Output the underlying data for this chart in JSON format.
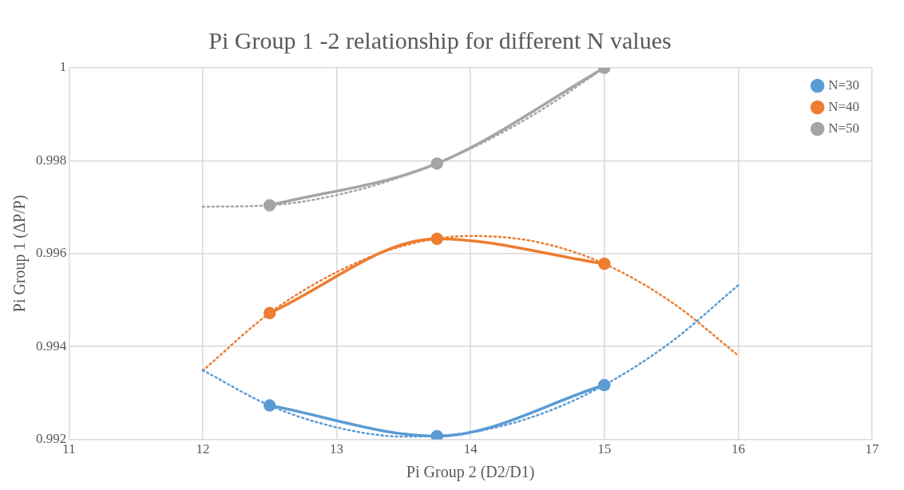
{
  "chart_data": {
    "type": "line",
    "title": "Pi Group 1 -2 relationship for different N values",
    "xlabel": "Pi Group 2 (D2/D1)",
    "ylabel": "Pi Group 1 (ΔP/P)",
    "xlim": [
      11,
      17
    ],
    "xticks": [
      11,
      12,
      13,
      14,
      15,
      16,
      17
    ],
    "ylim": [
      0.992,
      1
    ],
    "yticks": [
      0.992,
      0.994,
      0.996,
      0.998,
      1
    ],
    "grid": true,
    "legend": "top right",
    "marker": "circle",
    "line_style": "solid",
    "series": [
      {
        "name": "N=30",
        "color": "#5b9bd5",
        "x": [
          12.5,
          13.75,
          15
        ],
        "values": [
          0.99273,
          0.99207,
          0.99317
        ]
      },
      {
        "name": "N=40",
        "color": "#ed7d31",
        "x": [
          12.5,
          13.75,
          15
        ],
        "values": [
          0.99472,
          0.99632,
          0.99578
        ]
      },
      {
        "name": "N=50",
        "color": "#a5a5a5",
        "x": [
          12.5,
          13.75,
          15
        ],
        "values": [
          0.99704,
          0.99794,
          1
        ]
      },
      {
        "type": "line",
        "color": "#5b9bd5",
        "line_style": "dotted",
        "marker": "none",
        "x": [
          12,
          12.5,
          13,
          13.5,
          14,
          14.5,
          15,
          15.5,
          16
        ],
        "values": [
          0.99349,
          0.99273,
          0.99226,
          0.99206,
          0.99215,
          0.99252,
          0.99317,
          0.9941,
          0.99532
        ]
      },
      {
        "type": "line",
        "color": "#ed7d31",
        "line_style": "dotted",
        "marker": "none",
        "x": [
          12,
          12.5,
          13,
          13.5,
          14,
          14.5,
          15,
          15.5,
          16
        ],
        "values": [
          0.99348,
          0.99472,
          0.9956,
          0.99617,
          0.99638,
          0.99625,
          0.99578,
          0.99496,
          0.99381
        ]
      },
      {
        "type": "line",
        "color": "#a5a5a5",
        "line_style": "dotted",
        "marker": "none",
        "x": [
          12,
          12.5,
          13,
          13.5,
          14,
          14.5,
          15
        ],
        "values": [
          0.99701,
          0.99704,
          0.99726,
          0.99767,
          0.99826,
          0.99904,
          1
        ]
      }
    ]
  }
}
